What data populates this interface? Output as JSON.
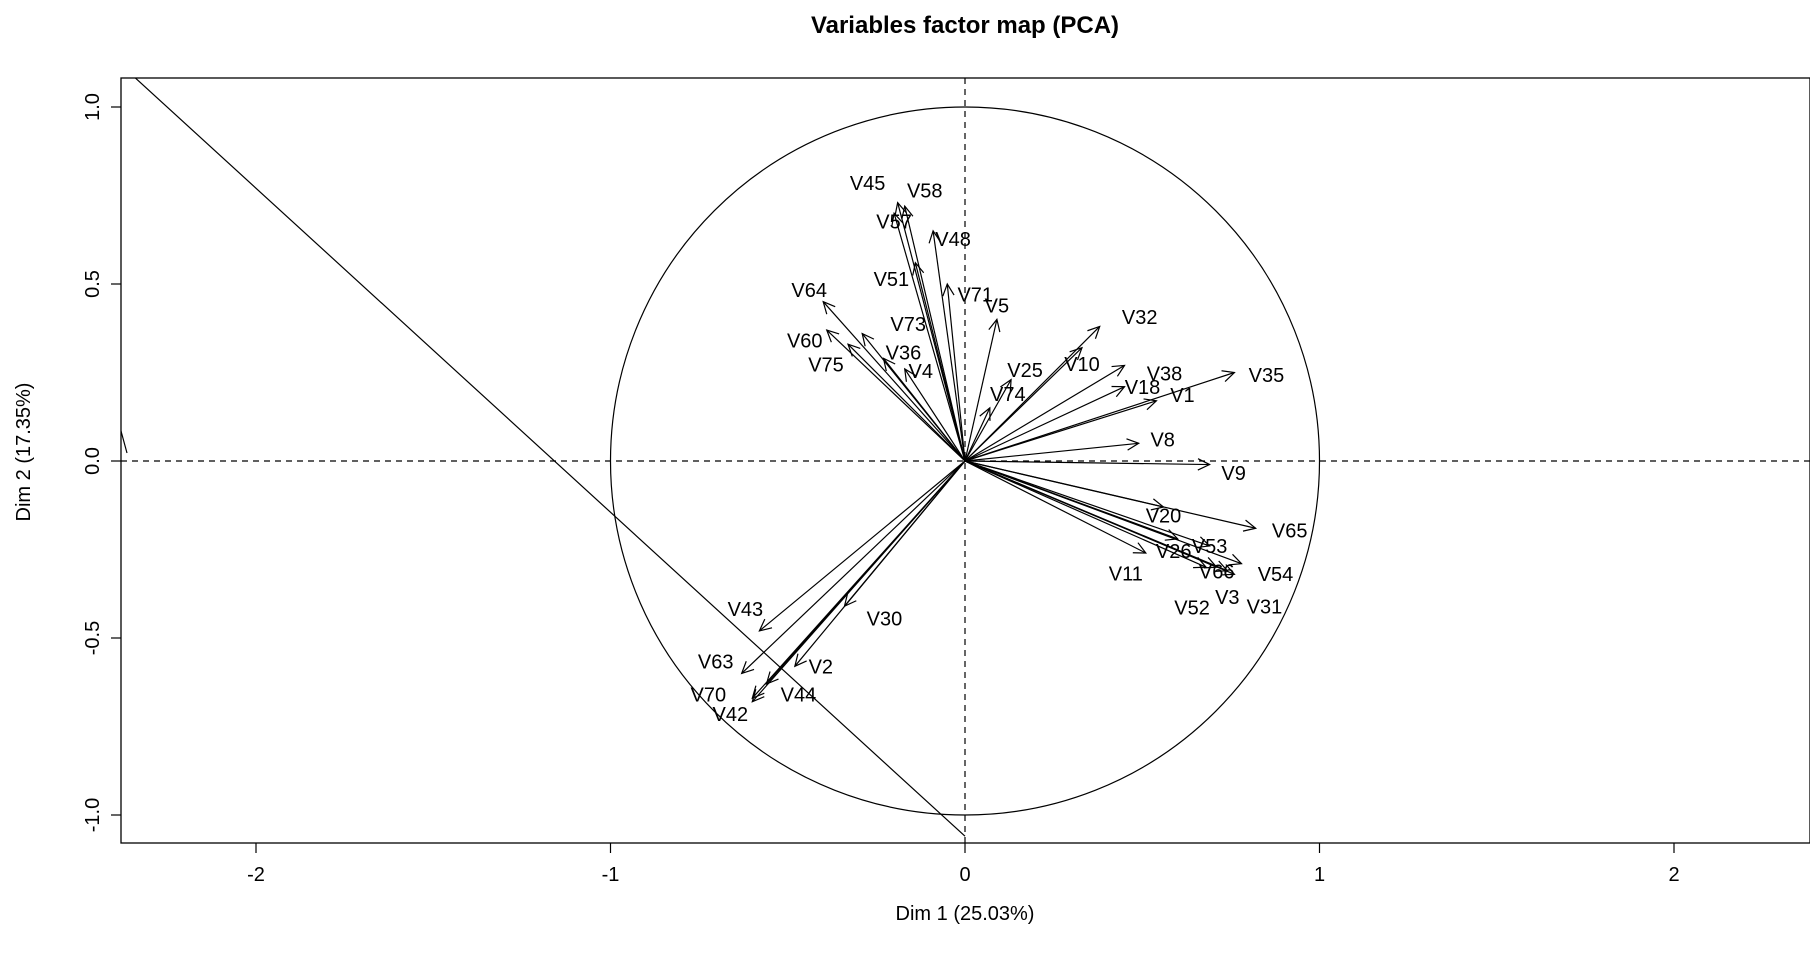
{
  "chart_data": {
    "type": "scatter",
    "title": "Variables factor map (PCA)",
    "xlabel": "Dim 1 (25.03%)",
    "ylabel": "Dim 2 (17.35%)",
    "xlim": [
      -2.36,
      2.36
    ],
    "ylim": [
      -1.08,
      1.08
    ],
    "xticks": [
      -2,
      -1,
      0,
      1,
      2
    ],
    "yticks": [
      -1.0,
      -0.5,
      0.0,
      0.5,
      1.0
    ],
    "xtick_labels": [
      "-2",
      "-1",
      "0",
      "1",
      "2"
    ],
    "ytick_labels": [
      "-1.0",
      "-0.5",
      "0.0",
      "0.5",
      "1.0"
    ],
    "grid": false,
    "correlation_circle_radius": 1.0,
    "reference_lines": {
      "vertical_x": 0,
      "horizontal_y": 0,
      "style": "dashed"
    },
    "diagonal_line": {
      "x1": -2.36,
      "y1": 1.1,
      "x2": 0.0,
      "y2": -1.06
    },
    "variables": [
      {
        "name": "V45",
        "x": -0.19,
        "y": 0.73
      },
      {
        "name": "V58",
        "x": -0.17,
        "y": 0.72
      },
      {
        "name": "V57",
        "x": -0.2,
        "y": 0.7
      },
      {
        "name": "V48",
        "x": -0.09,
        "y": 0.65
      },
      {
        "name": "V51",
        "x": -0.14,
        "y": 0.56
      },
      {
        "name": "V71",
        "x": -0.05,
        "y": 0.5
      },
      {
        "name": "V64",
        "x": -0.4,
        "y": 0.45
      },
      {
        "name": "V60",
        "x": -0.39,
        "y": 0.37
      },
      {
        "name": "V73",
        "x": -0.29,
        "y": 0.36
      },
      {
        "name": "V75",
        "x": -0.33,
        "y": 0.33
      },
      {
        "name": "V36",
        "x": -0.23,
        "y": 0.29
      },
      {
        "name": "V4",
        "x": -0.17,
        "y": 0.26
      },
      {
        "name": "V5",
        "x": 0.09,
        "y": 0.4
      },
      {
        "name": "V32",
        "x": 0.38,
        "y": 0.38
      },
      {
        "name": "V10",
        "x": 0.33,
        "y": 0.32
      },
      {
        "name": "V38",
        "x": 0.45,
        "y": 0.27
      },
      {
        "name": "V35",
        "x": 0.76,
        "y": 0.25
      },
      {
        "name": "V25",
        "x": 0.13,
        "y": 0.23
      },
      {
        "name": "V18",
        "x": 0.45,
        "y": 0.21
      },
      {
        "name": "V1",
        "x": 0.54,
        "y": 0.17
      },
      {
        "name": "V74",
        "x": 0.07,
        "y": 0.15
      },
      {
        "name": "V8",
        "x": 0.49,
        "y": 0.05
      },
      {
        "name": "V9",
        "x": 0.69,
        "y": -0.01
      },
      {
        "name": "V20",
        "x": 0.56,
        "y": -0.13
      },
      {
        "name": "V65",
        "x": 0.82,
        "y": -0.19
      },
      {
        "name": "V26",
        "x": 0.6,
        "y": -0.22
      },
      {
        "name": "V53",
        "x": 0.69,
        "y": -0.24
      },
      {
        "name": "V54",
        "x": 0.78,
        "y": -0.29
      },
      {
        "name": "V11",
        "x": 0.51,
        "y": -0.26
      },
      {
        "name": "V66",
        "x": 0.71,
        "y": -0.3
      },
      {
        "name": "V3",
        "x": 0.74,
        "y": -0.31
      },
      {
        "name": "V52",
        "x": 0.68,
        "y": -0.3
      },
      {
        "name": "V31",
        "x": 0.76,
        "y": -0.32
      },
      {
        "name": "V43",
        "x": -0.58,
        "y": -0.48
      },
      {
        "name": "V30",
        "x": -0.34,
        "y": -0.41
      },
      {
        "name": "V63",
        "x": -0.63,
        "y": -0.6
      },
      {
        "name": "V2",
        "x": -0.48,
        "y": -0.58
      },
      {
        "name": "V70",
        "x": -0.6,
        "y": -0.67
      },
      {
        "name": "V42",
        "x": -0.6,
        "y": -0.68
      },
      {
        "name": "V44",
        "x": -0.56,
        "y": -0.63
      }
    ]
  },
  "label_offsets": {
    "V45": [
      -30,
      -18
    ],
    "V58": [
      20,
      -14
    ],
    "V57": [
      0,
      10
    ],
    "V48": [
      20,
      10
    ],
    "V51": [
      -24,
      18
    ],
    "V71": [
      28,
      12
    ],
    "V64": [
      -14,
      -10
    ],
    "V60": [
      -22,
      12
    ],
    "V73": [
      46,
      -8
    ],
    "V75": [
      -22,
      22
    ],
    "V36": [
      20,
      -4
    ],
    "V4": [
      16,
      4
    ],
    "V5": [
      0,
      -12
    ],
    "V32": [
      40,
      -8
    ],
    "V10": [
      0,
      18
    ],
    "V38": [
      40,
      10
    ],
    "V35": [
      32,
      4
    ],
    "V25": [
      14,
      -8
    ],
    "V18": [
      18,
      2
    ],
    "V1": [
      26,
      -4
    ],
    "V74": [
      18,
      -12
    ],
    "V8": [
      24,
      -2
    ],
    "V9": [
      24,
      10
    ],
    "V20": [
      0,
      10
    ],
    "V65": [
      34,
      4
    ],
    "V26": [
      -4,
      14
    ],
    "V53": [
      0,
      2
    ],
    "V54": [
      34,
      12
    ],
    "V11": [
      -20,
      22
    ],
    "V66": [
      0,
      6
    ],
    "V3": [
      0,
      28
    ],
    "V52": [
      -14,
      42
    ],
    "V31": [
      30,
      34
    ],
    "V43": [
      -14,
      -20
    ],
    "V30": [
      40,
      14
    ],
    "V63": [
      -26,
      -10
    ],
    "V2": [
      26,
      2
    ],
    "V70": [
      -44,
      -2
    ],
    "V42": [
      -22,
      14
    ],
    "V44": [
      32,
      12
    ]
  }
}
